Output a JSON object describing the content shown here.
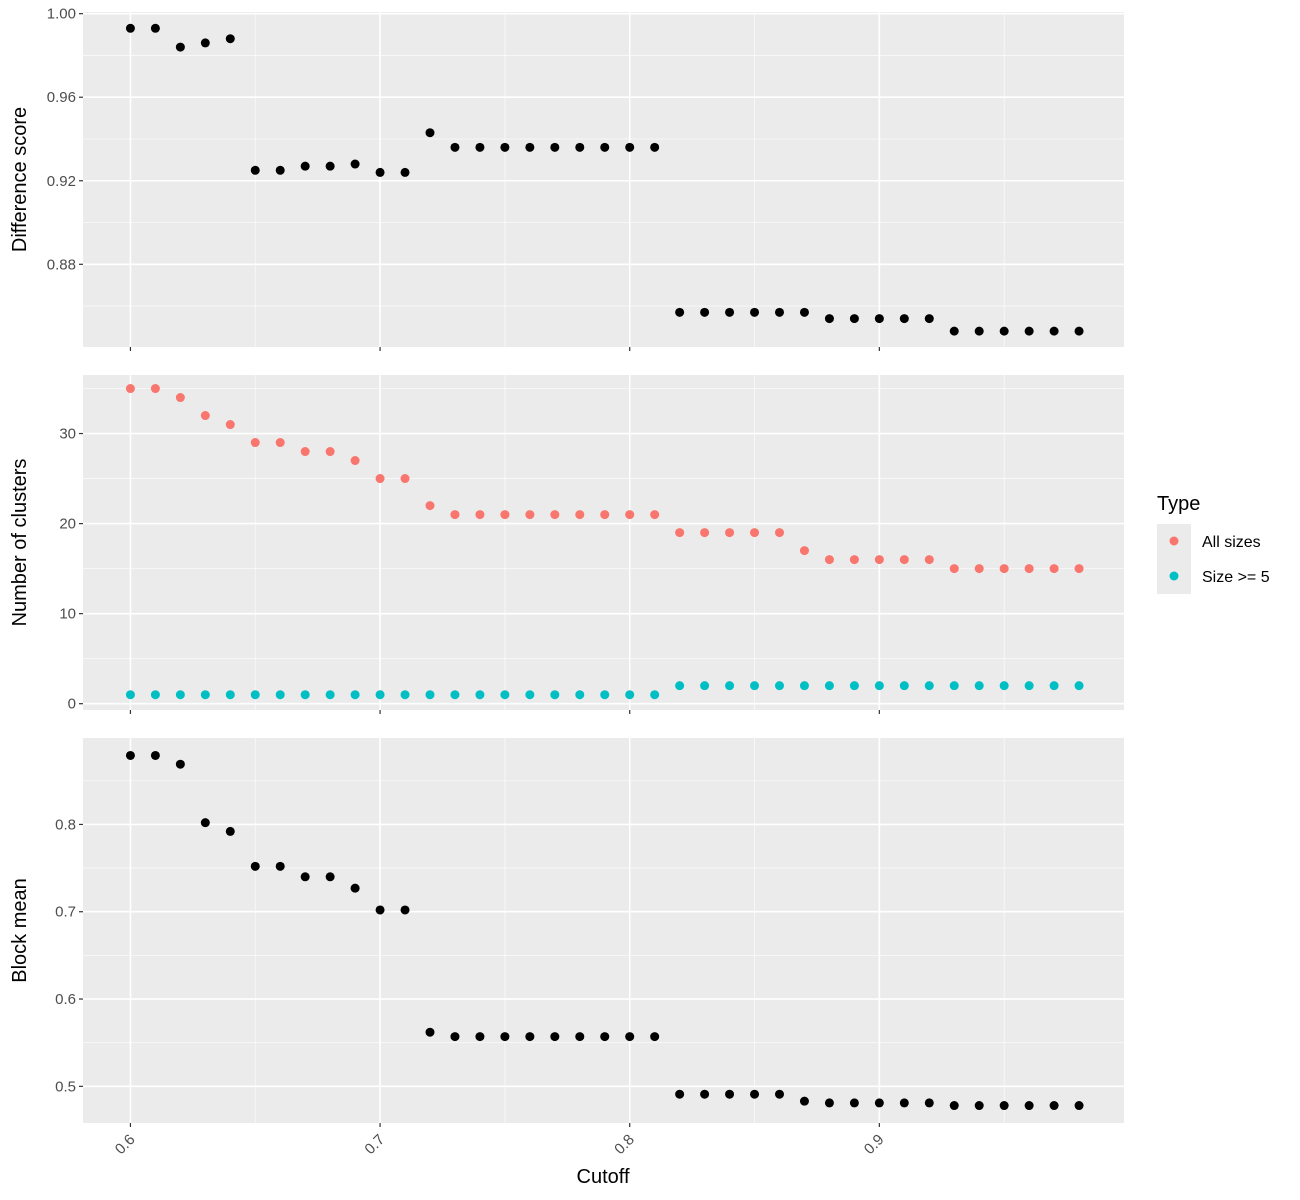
{
  "chart_data": {
    "type": "scatter",
    "xlabel": "Cutoff",
    "x_ticks": [
      "0.6",
      "0.7",
      "0.8",
      "0.9"
    ],
    "xlim": [
      0.581,
      0.998
    ],
    "x": [
      0.6,
      0.61,
      0.62,
      0.63,
      0.64,
      0.65,
      0.66,
      0.67,
      0.68,
      0.69,
      0.7,
      0.71,
      0.72,
      0.73,
      0.74,
      0.75,
      0.76,
      0.77,
      0.78,
      0.79,
      0.8,
      0.81,
      0.82,
      0.83,
      0.84,
      0.85,
      0.86,
      0.87,
      0.88,
      0.89,
      0.9,
      0.91,
      0.92,
      0.93,
      0.94,
      0.95,
      0.96,
      0.97,
      0.98
    ],
    "grid": true,
    "panels": [
      {
        "ylabel": "Difference score",
        "ylim": [
          0.8404,
          1.0008
        ],
        "y_ticks": [
          "0.88",
          "0.92",
          "0.96",
          "1.00"
        ],
        "y_tick_values": [
          0.88,
          0.92,
          0.96,
          1.0
        ],
        "series": [
          {
            "color": "#000000",
            "values": [
              0.993,
              0.993,
              0.984,
              0.986,
              0.988,
              0.925,
              0.925,
              0.927,
              0.927,
              0.928,
              0.924,
              0.924,
              0.943,
              0.936,
              0.936,
              0.936,
              0.936,
              0.936,
              0.936,
              0.936,
              0.936,
              0.936,
              0.857,
              0.857,
              0.857,
              0.857,
              0.857,
              0.857,
              0.854,
              0.854,
              0.854,
              0.854,
              0.854,
              0.848,
              0.848,
              0.848,
              0.848,
              0.848,
              0.848
            ]
          }
        ]
      },
      {
        "ylabel": "Number of clusters",
        "ylim": [
          -0.7,
          36.5
        ],
        "y_ticks": [
          "0",
          "10",
          "20",
          "30"
        ],
        "y_tick_values": [
          0,
          10,
          20,
          30
        ],
        "series": [
          {
            "name": "All sizes",
            "color": "#F8766D",
            "values": [
              35,
              35,
              34,
              32,
              31,
              29,
              29,
              28,
              28,
              27,
              25,
              25,
              22,
              21,
              21,
              21,
              21,
              21,
              21,
              21,
              21,
              21,
              19,
              19,
              19,
              19,
              19,
              17,
              16,
              16,
              16,
              16,
              16,
              15,
              15,
              15,
              15,
              15,
              15
            ]
          },
          {
            "name": "Size >= 5",
            "color": "#00BFC4",
            "values": [
              1,
              1,
              1,
              1,
              1,
              1,
              1,
              1,
              1,
              1,
              1,
              1,
              1,
              1,
              1,
              1,
              1,
              1,
              1,
              1,
              1,
              1,
              2,
              2,
              2,
              2,
              2,
              2,
              2,
              2,
              2,
              2,
              2,
              2,
              2,
              2,
              2,
              2,
              2
            ]
          }
        ]
      },
      {
        "ylabel": "Block mean",
        "ylim": [
          0.458,
          0.899
        ],
        "y_ticks": [
          "0.5",
          "0.6",
          "0.7",
          "0.8"
        ],
        "y_tick_values": [
          0.5,
          0.6,
          0.7,
          0.8
        ],
        "series": [
          {
            "color": "#000000",
            "values": [
              0.879,
              0.879,
              0.869,
              0.802,
              0.792,
              0.752,
              0.752,
              0.74,
              0.74,
              0.727,
              0.702,
              0.702,
              0.562,
              0.557,
              0.557,
              0.557,
              0.557,
              0.557,
              0.557,
              0.557,
              0.557,
              0.557,
              0.491,
              0.491,
              0.491,
              0.491,
              0.491,
              0.483,
              0.481,
              0.481,
              0.481,
              0.481,
              0.481,
              0.478,
              0.478,
              0.478,
              0.478,
              0.478,
              0.478
            ]
          }
        ]
      }
    ],
    "legend": {
      "title": "Type",
      "position": "right",
      "entries": [
        {
          "label": "All sizes",
          "color": "#F8766D"
        },
        {
          "label": "Size >= 5",
          "color": "#00BFC4"
        }
      ]
    }
  },
  "style": {
    "panel_background": "#EBEBEB",
    "grid_major": "#FFFFFF",
    "tick_color": "#333333"
  }
}
